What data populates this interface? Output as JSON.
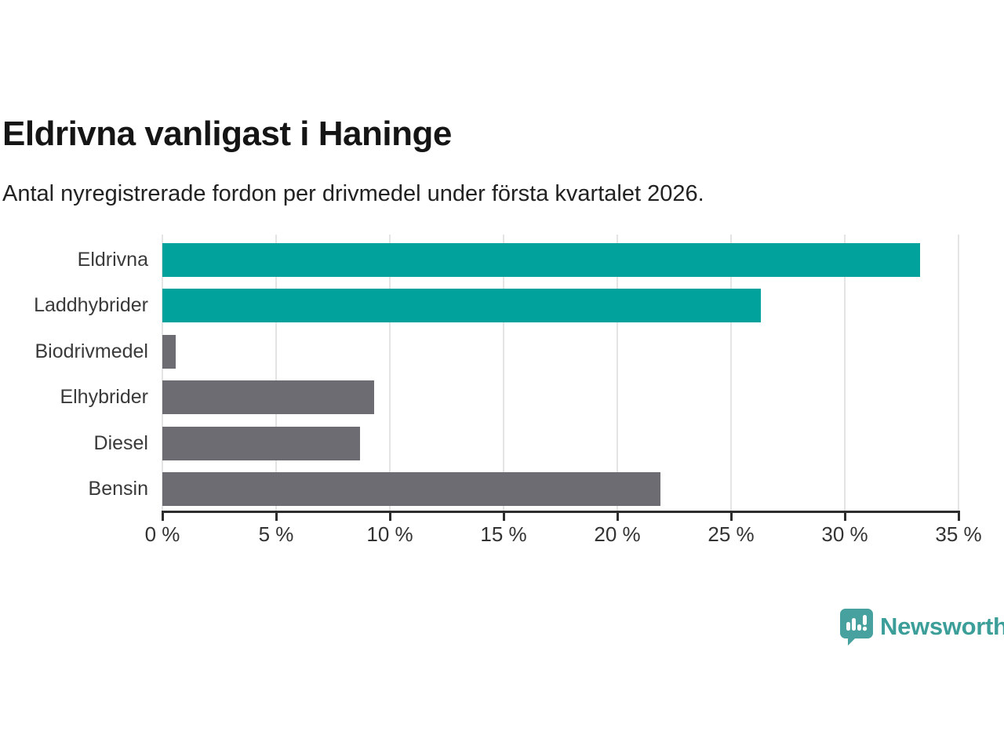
{
  "title": "Eldrivna vanligast i Haninge",
  "subtitle": "Antal nyregistrerade fordon per drivmedel under första kvartalet 2026.",
  "chart_data": {
    "type": "bar",
    "orientation": "horizontal",
    "title": "Eldrivna vanligast i Haninge",
    "subtitle": "Antal nyregistrerade fordon per drivmedel under första kvartalet 2026.",
    "categories": [
      "Eldrivna",
      "Laddhybrider",
      "Biodrivmedel",
      "Elhybrider",
      "Diesel",
      "Bensin"
    ],
    "values": [
      33.3,
      26.3,
      0.6,
      9.3,
      8.7,
      21.9
    ],
    "unit": "%",
    "bar_colors": [
      "#00a29b",
      "#00a29b",
      "#6c6c72",
      "#6c6c72",
      "#6c6c72",
      "#6c6c72"
    ],
    "highlight_color": "#00a29b",
    "default_color": "#6c6c72",
    "xlim": [
      0,
      35
    ],
    "x_tick_step": 5,
    "x_tick_labels": [
      "0 %",
      "5 %",
      "10 %",
      "15 %",
      "20 %",
      "25 %",
      "30 %",
      "35 %"
    ],
    "grid": "vertical",
    "legend": "none"
  },
  "branding": {
    "logo_text": "Newsworthy",
    "logo_text_color": "#3c9e99",
    "logo_icon": "speech-bubble-bar-chart-icon",
    "logo_icon_color": "#47a19e"
  }
}
